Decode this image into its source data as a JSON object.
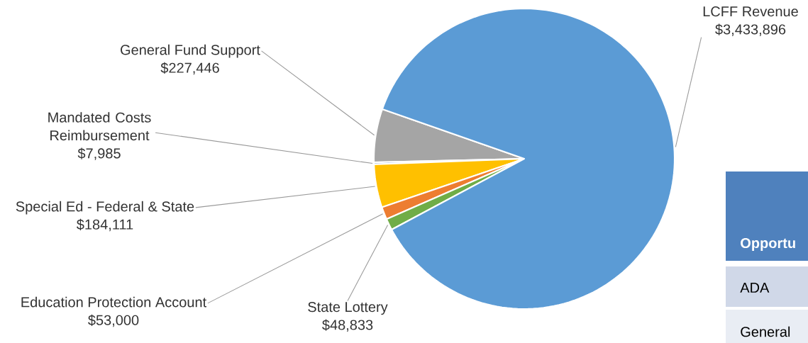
{
  "chart_data": {
    "type": "pie",
    "categories": [
      "General Fund Support",
      "Mandated Costs Reimbursement",
      "Special Ed - Federal & State",
      "Education Protection Account",
      "State Lottery",
      "LCFF Revenue"
    ],
    "values": [
      227446,
      7985,
      184111,
      53000,
      48833,
      3433896
    ],
    "value_labels": [
      "$227,446",
      "$7,985",
      "$184,111",
      "$53,000",
      "$48,833",
      "$3,433,896"
    ],
    "colors": [
      "#a5a5a5",
      "#4472c4",
      "#ffc000",
      "#ed7d31",
      "#70ad47",
      "#5b9bd5"
    ],
    "annotations": [
      "Opportu",
      "ADA",
      "General"
    ]
  }
}
